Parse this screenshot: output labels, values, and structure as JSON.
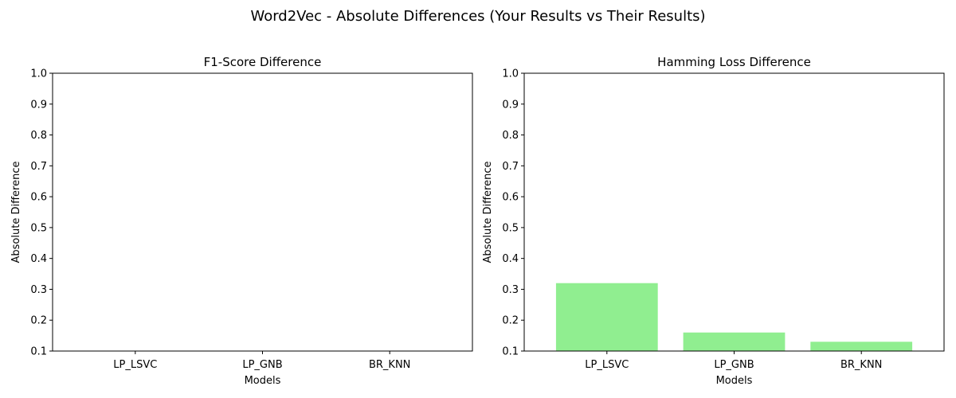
{
  "figure": {
    "title": "Word2Vec - Absolute Differences (Your Results vs Their Results)"
  },
  "chart_data": [
    {
      "type": "bar",
      "title": "F1-Score Difference",
      "xlabel": "Models",
      "ylabel": "Absolute Difference",
      "categories": [
        "LP_LSVC",
        "LP_GNB",
        "BR_KNN"
      ],
      "values": [
        0.0,
        0.0,
        0.0
      ],
      "ylim": [
        0.1,
        1.0
      ],
      "yticks": [
        "0.1",
        "0.2",
        "0.3",
        "0.4",
        "0.5",
        "0.6",
        "0.7",
        "0.8",
        "0.9",
        "1.0"
      ],
      "bar_color": "#90ee90",
      "grid": false,
      "legend": "none"
    },
    {
      "type": "bar",
      "title": "Hamming Loss Difference",
      "xlabel": "Models",
      "ylabel": "Absolute Difference",
      "categories": [
        "LP_LSVC",
        "LP_GNB",
        "BR_KNN"
      ],
      "values": [
        0.32,
        0.16,
        0.13
      ],
      "ylim": [
        0.1,
        1.0
      ],
      "yticks": [
        "0.1",
        "0.2",
        "0.3",
        "0.4",
        "0.5",
        "0.6",
        "0.7",
        "0.8",
        "0.9",
        "1.0"
      ],
      "bar_color": "#90ee90",
      "grid": false,
      "legend": "none"
    }
  ]
}
